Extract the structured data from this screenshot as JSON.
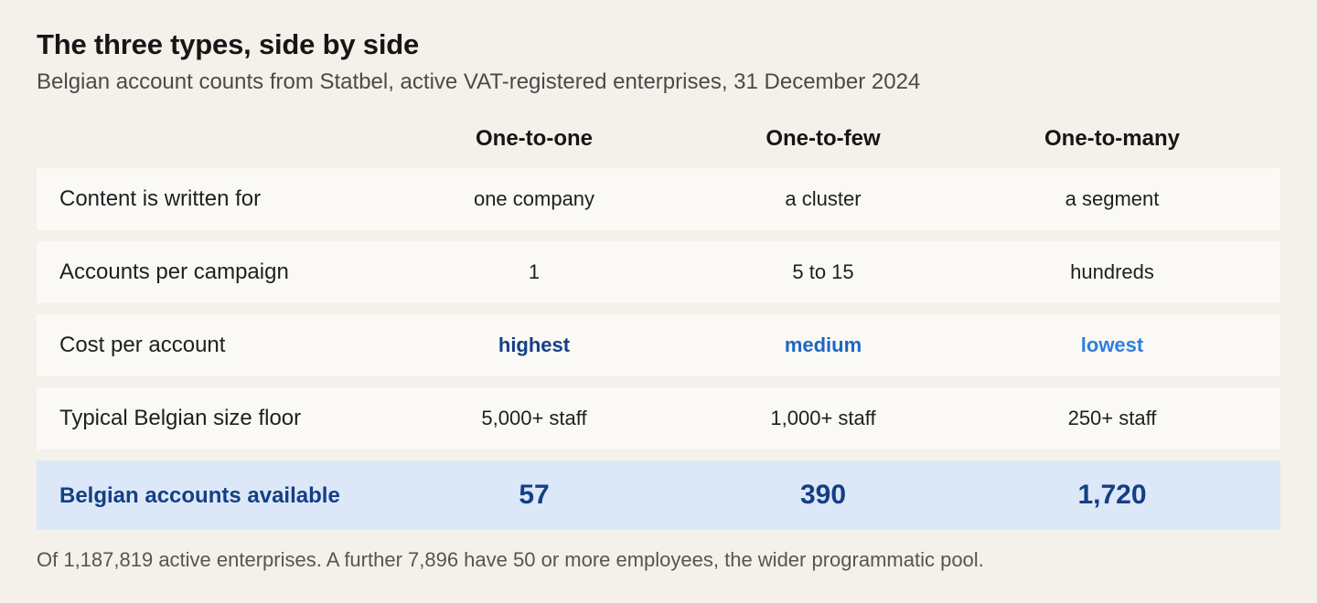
{
  "title": "The three types, side by side",
  "subtitle": "Belgian account counts from Statbel, active VAT-registered enterprises, 31 December 2024",
  "columns": [
    "One-to-one",
    "One-to-few",
    "One-to-many"
  ],
  "rows": [
    {
      "label": "Content is written for",
      "values": [
        "one company",
        "a cluster",
        "a segment"
      ]
    },
    {
      "label": "Accounts per campaign",
      "values": [
        "1",
        "5 to 15",
        "hundreds"
      ]
    },
    {
      "label": "Cost per account",
      "values": [
        "highest",
        "medium",
        "lowest"
      ]
    },
    {
      "label": "Typical Belgian size floor",
      "values": [
        "5,000+ staff",
        "1,000+ staff",
        "250+ staff"
      ]
    }
  ],
  "total": {
    "label": "Belgian accounts available",
    "values": [
      "57",
      "390",
      "1,720"
    ]
  },
  "footnote": "Of 1,187,819 active enterprises. A further 7,896 have 50 or more employees, the wider programmatic pool.",
  "colors": {
    "background": "#f4f1ea",
    "row": "#fbf9f6",
    "total_row": "#dce8f8",
    "total_text": "#143f86",
    "cost_colors": [
      "#143f86",
      "#1f66c4",
      "#2f7fe0"
    ]
  }
}
